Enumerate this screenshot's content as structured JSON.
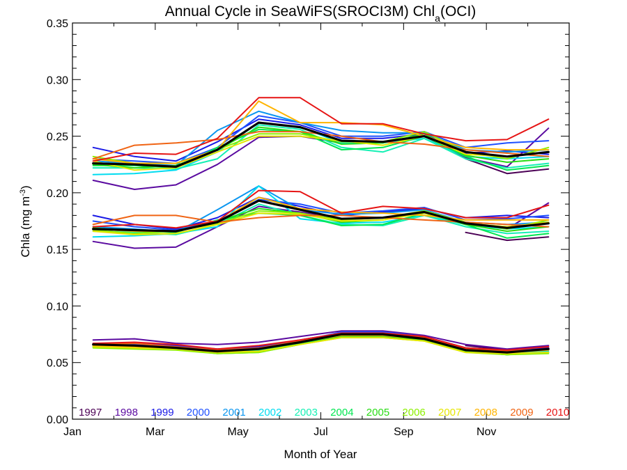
{
  "chart_data": {
    "type": "line",
    "title": {
      "prefix": "Annual Cycle in SeaWiFS(SROCI3M) Chl",
      "sub": "a",
      "suffix": "(OCI)"
    },
    "xlabel": "Month of Year",
    "ylabel": {
      "text": "Chla (mg m",
      "sup": "-3",
      "close": ")"
    },
    "xlim": [
      0,
      12
    ],
    "ylim": [
      0,
      0.35
    ],
    "x_ticks": [
      {
        "value": 0,
        "label": "Jan"
      },
      {
        "value": 2,
        "label": "Mar"
      },
      {
        "value": 4,
        "label": "May"
      },
      {
        "value": 6,
        "label": "Jul"
      },
      {
        "value": 8,
        "label": "Sep"
      },
      {
        "value": 10,
        "label": "Nov"
      }
    ],
    "x_minor_ticks": [
      1,
      3,
      5,
      7,
      9,
      11,
      12
    ],
    "y_ticks": [
      {
        "value": 0.0,
        "label": "0.00"
      },
      {
        "value": 0.05,
        "label": "0.05"
      },
      {
        "value": 0.1,
        "label": "0.10"
      },
      {
        "value": 0.15,
        "label": "0.15"
      },
      {
        "value": 0.2,
        "label": "0.20"
      },
      {
        "value": 0.25,
        "label": "0.25"
      },
      {
        "value": 0.3,
        "label": "0.30"
      },
      {
        "value": 0.35,
        "label": "0.35"
      }
    ],
    "y_minor_step": 0.01,
    "months": [
      0.5,
      1.5,
      2.5,
      3.5,
      4.5,
      5.5,
      6.5,
      7.5,
      8.5,
      9.5,
      10.5,
      11.5
    ],
    "legend_position": "bottom",
    "years": [
      {
        "name": "1997",
        "color": "#4b0055",
        "upper": [
          null,
          null,
          null,
          null,
          null,
          null,
          null,
          null,
          null,
          0.23,
          0.217,
          0.221
        ],
        "middle": [
          null,
          null,
          null,
          null,
          null,
          null,
          null,
          null,
          null,
          0.165,
          0.158,
          0.161
        ],
        "lower": [
          null,
          null,
          null,
          null,
          null,
          null,
          null,
          null,
          null,
          0.065,
          0.061,
          0.064
        ]
      },
      {
        "name": "1998",
        "color": "#5a0aa0",
        "upper": [
          0.211,
          0.203,
          0.207,
          0.225,
          0.249,
          0.25,
          0.244,
          0.244,
          0.25,
          0.231,
          0.223,
          0.257
        ],
        "middle": [
          0.157,
          0.151,
          0.152,
          0.17,
          0.188,
          0.183,
          0.177,
          0.178,
          0.182,
          0.174,
          0.168,
          0.191
        ],
        "lower": [
          0.07,
          0.071,
          0.067,
          0.066,
          0.068,
          0.073,
          0.078,
          0.078,
          0.074,
          0.066,
          0.062,
          0.065
        ]
      },
      {
        "name": "1999",
        "color": "#1a1ae6",
        "upper": [
          0.24,
          0.232,
          0.228,
          0.245,
          0.265,
          0.26,
          0.248,
          0.248,
          0.252,
          0.235,
          0.237,
          0.234
        ],
        "middle": [
          0.18,
          0.172,
          0.168,
          0.178,
          0.196,
          0.188,
          0.18,
          0.183,
          0.186,
          0.178,
          0.18,
          0.178
        ],
        "lower": [
          0.067,
          0.067,
          0.065,
          0.062,
          0.064,
          0.07,
          0.076,
          0.076,
          0.072,
          0.062,
          0.06,
          0.063
        ]
      },
      {
        "name": "2000",
        "color": "#1e50ff",
        "upper": [
          0.23,
          0.228,
          0.226,
          0.24,
          0.268,
          0.262,
          0.25,
          0.25,
          0.254,
          0.24,
          0.244,
          0.246
        ],
        "middle": [
          0.175,
          0.17,
          0.167,
          0.175,
          0.194,
          0.19,
          0.182,
          0.184,
          0.187,
          0.176,
          0.177,
          0.18
        ],
        "lower": [
          0.066,
          0.066,
          0.064,
          0.061,
          0.063,
          0.069,
          0.077,
          0.077,
          0.073,
          0.063,
          0.061,
          0.062
        ]
      },
      {
        "name": "2001",
        "color": "#0a96f0",
        "upper": [
          0.228,
          0.226,
          0.224,
          0.255,
          0.272,
          0.262,
          0.255,
          0.253,
          0.253,
          0.238,
          0.236,
          0.238
        ],
        "middle": [
          0.17,
          0.168,
          0.165,
          0.185,
          0.206,
          0.185,
          0.181,
          0.182,
          0.185,
          0.174,
          0.172,
          0.174
        ],
        "lower": [
          0.065,
          0.065,
          0.063,
          0.06,
          0.062,
          0.068,
          0.075,
          0.075,
          0.072,
          0.062,
          0.059,
          0.061
        ]
      },
      {
        "name": "2002",
        "color": "#00dcf0",
        "upper": [
          0.216,
          0.217,
          0.22,
          0.236,
          0.262,
          0.258,
          0.244,
          0.244,
          0.248,
          0.232,
          0.23,
          0.232
        ],
        "middle": [
          0.161,
          0.162,
          0.164,
          0.17,
          0.206,
          0.177,
          0.173,
          0.174,
          0.18,
          0.172,
          0.168,
          0.17
        ],
        "lower": [
          0.064,
          0.064,
          0.062,
          0.06,
          0.061,
          0.067,
          0.074,
          0.074,
          0.071,
          0.061,
          0.058,
          0.06
        ]
      },
      {
        "name": "2003",
        "color": "#14f0b4",
        "upper": [
          0.222,
          0.222,
          0.221,
          0.23,
          0.26,
          0.256,
          0.24,
          0.236,
          0.248,
          0.23,
          0.222,
          0.226
        ],
        "middle": [
          0.166,
          0.165,
          0.163,
          0.172,
          0.19,
          0.18,
          0.172,
          0.171,
          0.18,
          0.17,
          0.164,
          0.166
        ],
        "lower": [
          0.064,
          0.063,
          0.062,
          0.059,
          0.061,
          0.067,
          0.073,
          0.073,
          0.07,
          0.06,
          0.057,
          0.059
        ]
      },
      {
        "name": "2004",
        "color": "#00e650",
        "upper": [
          0.224,
          0.224,
          0.222,
          0.24,
          0.256,
          0.254,
          0.238,
          0.24,
          0.25,
          0.232,
          0.22,
          0.224
        ],
        "middle": [
          0.168,
          0.166,
          0.165,
          0.176,
          0.182,
          0.18,
          0.171,
          0.172,
          0.182,
          0.172,
          0.16,
          0.164
        ],
        "lower": [
          0.064,
          0.063,
          0.062,
          0.059,
          0.06,
          0.067,
          0.073,
          0.073,
          0.07,
          0.06,
          0.057,
          0.059
        ]
      },
      {
        "name": "2005",
        "color": "#28dc14",
        "upper": [
          0.225,
          0.222,
          0.224,
          0.238,
          0.258,
          0.254,
          0.243,
          0.244,
          0.252,
          0.233,
          0.227,
          0.23
        ],
        "middle": [
          0.169,
          0.166,
          0.166,
          0.175,
          0.186,
          0.182,
          0.174,
          0.176,
          0.183,
          0.172,
          0.166,
          0.17
        ],
        "lower": [
          0.064,
          0.063,
          0.062,
          0.058,
          0.059,
          0.066,
          0.073,
          0.073,
          0.07,
          0.06,
          0.057,
          0.059
        ]
      },
      {
        "name": "2006",
        "color": "#8cf000",
        "upper": [
          0.232,
          0.226,
          0.226,
          0.238,
          0.252,
          0.252,
          0.245,
          0.245,
          0.254,
          0.236,
          0.23,
          0.24
        ],
        "middle": [
          0.167,
          0.164,
          0.166,
          0.173,
          0.184,
          0.182,
          0.176,
          0.178,
          0.184,
          0.174,
          0.168,
          0.176
        ],
        "lower": [
          0.063,
          0.062,
          0.061,
          0.058,
          0.059,
          0.066,
          0.072,
          0.072,
          0.069,
          0.059,
          0.057,
          0.058
        ]
      },
      {
        "name": "2007",
        "color": "#e6e600",
        "upper": [
          0.228,
          0.22,
          0.222,
          0.236,
          0.25,
          0.25,
          0.246,
          0.242,
          0.25,
          0.234,
          0.232,
          0.236
        ],
        "middle": [
          0.166,
          0.163,
          0.164,
          0.172,
          0.182,
          0.181,
          0.175,
          0.176,
          0.182,
          0.173,
          0.17,
          0.174
        ],
        "lower": [
          0.064,
          0.063,
          0.062,
          0.059,
          0.06,
          0.066,
          0.072,
          0.072,
          0.069,
          0.059,
          0.058,
          0.059
        ]
      },
      {
        "name": "2008",
        "color": "#ffb400",
        "upper": [
          0.23,
          0.226,
          0.226,
          0.238,
          0.281,
          0.262,
          0.262,
          0.26,
          0.25,
          0.24,
          0.238,
          0.238
        ],
        "middle": [
          0.168,
          0.166,
          0.166,
          0.174,
          0.196,
          0.186,
          0.183,
          0.182,
          0.18,
          0.176,
          0.176,
          0.176
        ],
        "lower": [
          0.065,
          0.064,
          0.063,
          0.06,
          0.062,
          0.068,
          0.074,
          0.074,
          0.071,
          0.061,
          0.059,
          0.061
        ]
      },
      {
        "name": "2009",
        "color": "#f06414",
        "upper": [
          0.23,
          0.242,
          0.244,
          0.247,
          0.254,
          0.254,
          0.25,
          0.245,
          0.243,
          0.238,
          0.235,
          0.232
        ],
        "middle": [
          0.172,
          0.18,
          0.18,
          0.174,
          0.178,
          0.18,
          0.18,
          0.178,
          0.176,
          0.174,
          0.172,
          0.17
        ],
        "lower": [
          0.066,
          0.067,
          0.064,
          0.061,
          0.063,
          0.069,
          0.075,
          0.075,
          0.072,
          0.062,
          0.06,
          0.062
        ]
      },
      {
        "name": "2010",
        "color": "#e61414",
        "upper": [
          0.228,
          0.235,
          0.234,
          0.248,
          0.284,
          0.284,
          0.261,
          0.261,
          0.252,
          0.246,
          0.247,
          0.265
        ],
        "middle": [
          0.17,
          0.172,
          0.169,
          0.175,
          0.202,
          0.201,
          0.182,
          0.188,
          0.186,
          0.178,
          0.178,
          0.189
        ],
        "lower": [
          0.067,
          0.068,
          0.066,
          0.062,
          0.065,
          0.07,
          0.076,
          0.076,
          0.073,
          0.063,
          0.061,
          0.064
        ]
      }
    ],
    "mean": {
      "color": "#000000",
      "upper": [
        0.226,
        0.225,
        0.223,
        0.238,
        0.262,
        0.258,
        0.246,
        0.245,
        0.25,
        0.236,
        0.232,
        0.236
      ],
      "middle": [
        0.168,
        0.167,
        0.166,
        0.174,
        0.193,
        0.185,
        0.177,
        0.178,
        0.183,
        0.173,
        0.169,
        0.173
      ],
      "lower": [
        0.066,
        0.065,
        0.063,
        0.06,
        0.062,
        0.068,
        0.075,
        0.075,
        0.071,
        0.061,
        0.059,
        0.062
      ]
    }
  }
}
